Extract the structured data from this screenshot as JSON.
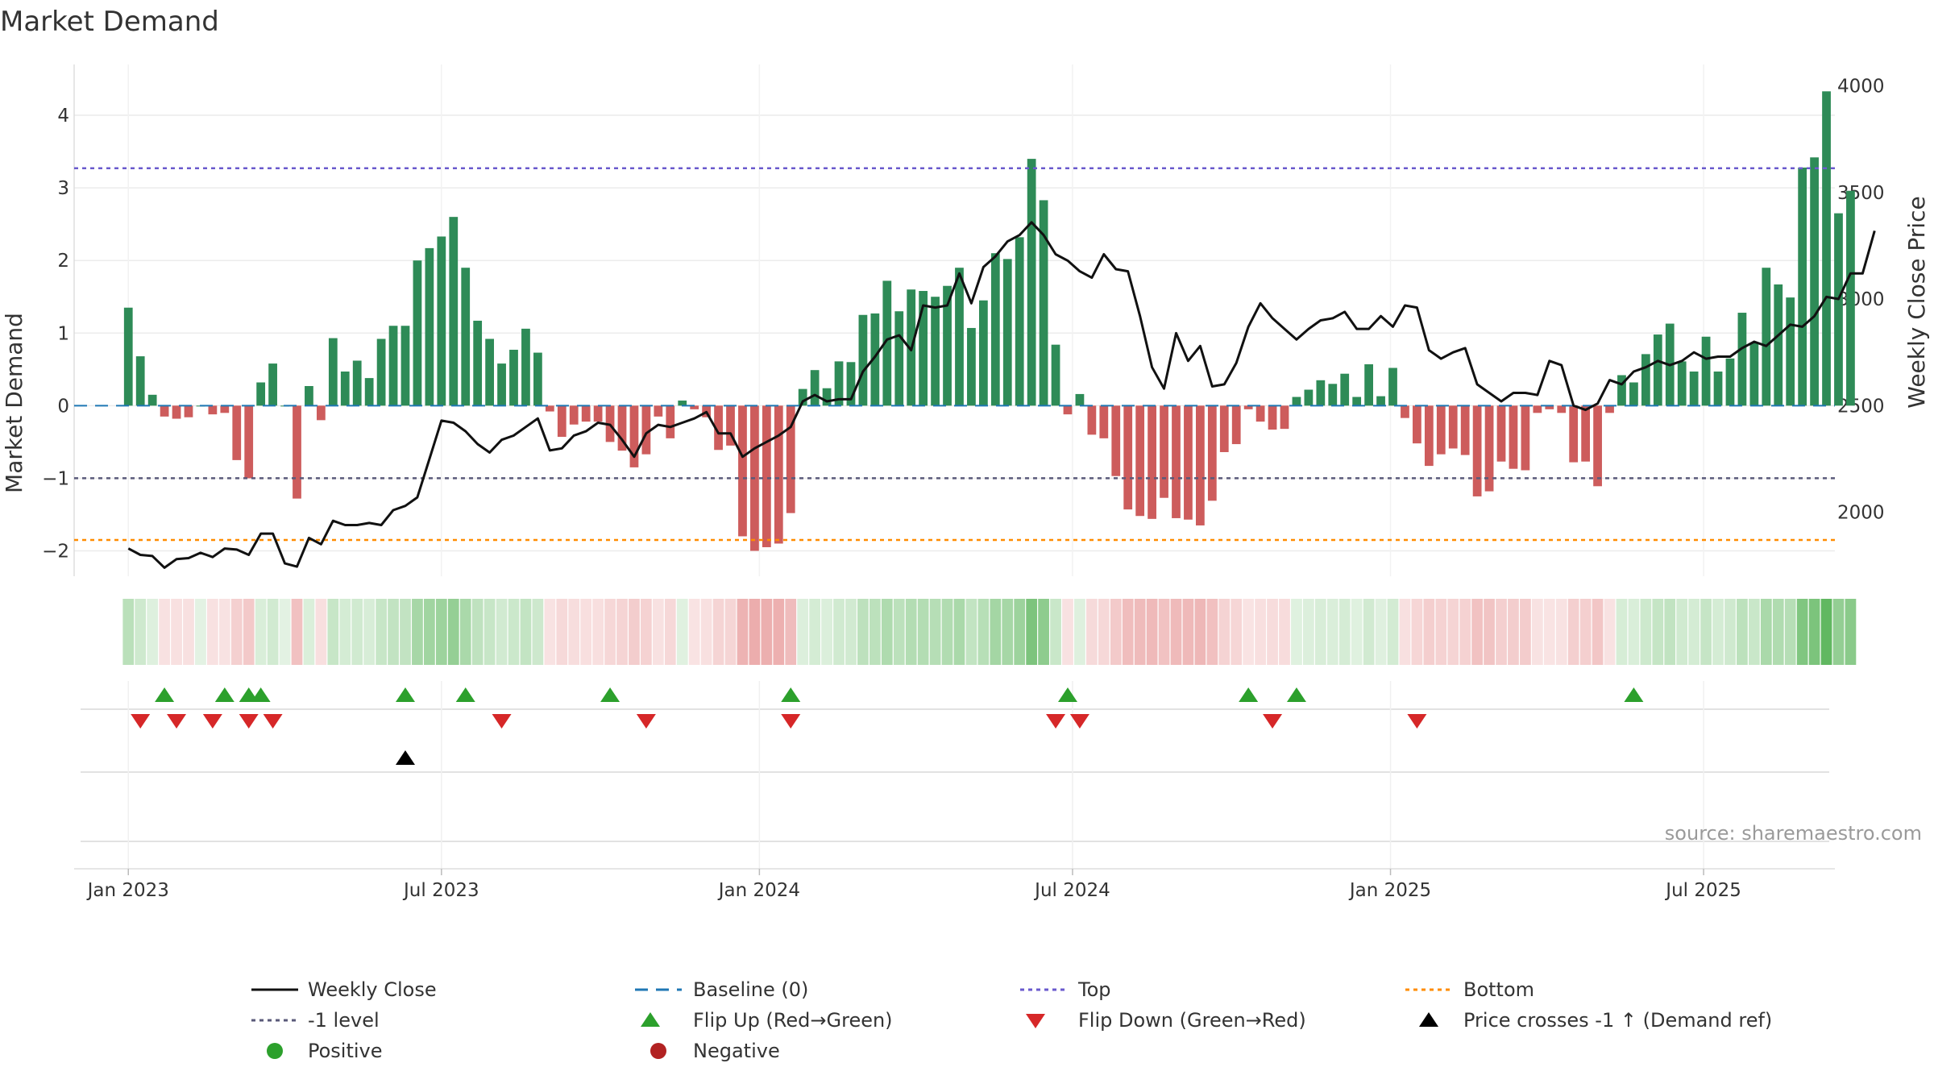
{
  "chart_data": {
    "type": "bar",
    "title": "Market Demand",
    "ylabel": "Market Demand",
    "y2label": "Weekly Close Price",
    "ylim": [
      -2.35,
      4.7
    ],
    "y2lim": [
      1700,
      4100
    ],
    "yticks": [
      4,
      3,
      2,
      1,
      0,
      -1,
      -2
    ],
    "ytick_labels": [
      "4",
      "3",
      "2",
      "1",
      "0",
      "−1",
      "−2"
    ],
    "y2ticks": [
      4000,
      3500,
      3000,
      2500,
      2000
    ],
    "y2tick_labels": [
      "4000",
      "3500",
      "3000",
      "2500",
      "2000"
    ],
    "x_range_weeks": [
      -4.5,
      141.7
    ],
    "xtick_labels": [
      "Jan 2023",
      "Jul 2023",
      "Jan 2024",
      "Jul 2024",
      "Jan 2025",
      "Jul 2025"
    ],
    "xtick_weeks": [
      0,
      26,
      52.4,
      78.4,
      104.8,
      130.8
    ],
    "levels": {
      "top": 3.27,
      "minus_one": -1,
      "bottom": -1.85,
      "baseline": 0
    },
    "demand": [
      1.35,
      0.68,
      0.15,
      -0.15,
      -0.18,
      -0.16,
      0,
      -0.12,
      -0.1,
      -0.75,
      -1,
      0.32,
      0.58,
      0,
      -1.28,
      0.27,
      -0.2,
      0.93,
      0.47,
      0.62,
      0.38,
      0.92,
      1.1,
      1.1,
      2.0,
      2.17,
      2.33,
      2.6,
      1.9,
      1.17,
      0.92,
      0.58,
      0.77,
      1.06,
      0.73,
      -0.08,
      -0.43,
      -0.26,
      -0.22,
      -0.22,
      -0.5,
      -0.62,
      -0.85,
      -0.67,
      -0.15,
      -0.45,
      0.07,
      -0.05,
      -0.16,
      -0.61,
      -0.55,
      -1.8,
      -2.0,
      -1.95,
      -1.9,
      -1.48,
      0.23,
      0.49,
      0.24,
      0.61,
      0.6,
      1.25,
      1.27,
      1.72,
      1.3,
      1.6,
      1.58,
      1.5,
      1.65,
      1.9,
      1.07,
      1.45,
      2.1,
      2.02,
      2.32,
      3.4,
      2.83,
      0.84,
      -0.12,
      0.16,
      -0.4,
      -0.45,
      -0.97,
      -1.43,
      -1.52,
      -1.56,
      -1.27,
      -1.55,
      -1.57,
      -1.65,
      -1.31,
      -0.64,
      -0.53,
      -0.05,
      -0.22,
      -0.33,
      -0.32,
      0.12,
      0.22,
      0.35,
      0.3,
      0.44,
      0.12,
      0.57,
      0.13,
      0.52,
      -0.17,
      -0.52,
      -0.83,
      -0.67,
      -0.59,
      -0.68,
      -1.25,
      -1.18,
      -0.77,
      -0.87,
      -0.89,
      -0.1,
      -0.05,
      -0.1,
      -0.78,
      -0.77,
      -1.11,
      -0.1,
      0.42,
      0.32,
      0.71,
      0.98,
      1.13,
      0.61,
      0.47,
      0.95,
      0.47,
      0.65,
      1.28,
      0.86,
      1.9,
      1.67,
      1.49,
      3.28,
      3.42,
      4.33,
      2.65,
      2.96
    ],
    "weekly_close": [
      1830,
      1800,
      1795,
      1740,
      1780,
      1785,
      1810,
      1790,
      1830,
      1825,
      1800,
      1900,
      1900,
      1760,
      1745,
      1880,
      1850,
      1960,
      1940,
      1940,
      1950,
      1940,
      2010,
      2030,
      2070,
      2250,
      2430,
      2420,
      2380,
      2320,
      2280,
      2340,
      2360,
      2400,
      2440,
      2290,
      2300,
      2360,
      2380,
      2420,
      2410,
      2340,
      2260,
      2370,
      2410,
      2400,
      2420,
      2440,
      2470,
      2370,
      2370,
      2260,
      2300,
      2330,
      2360,
      2400,
      2520,
      2550,
      2520,
      2530,
      2530,
      2660,
      2730,
      2810,
      2830,
      2760,
      2970,
      2960,
      2970,
      3120,
      2980,
      3150,
      3200,
      3270,
      3300,
      3360,
      3300,
      3210,
      3180,
      3130,
      3100,
      3210,
      3140,
      3130,
      2920,
      2680,
      2580,
      2840,
      2710,
      2780,
      2590,
      2600,
      2700,
      2870,
      2980,
      2910,
      2860,
      2810,
      2860,
      2900,
      2910,
      2940,
      2860,
      2860,
      2920,
      2870,
      2970,
      2960,
      2760,
      2720,
      2750,
      2770,
      2600,
      2560,
      2520,
      2560,
      2560,
      2550,
      2710,
      2690,
      2500,
      2480,
      2510,
      2620,
      2600,
      2660,
      2680,
      2710,
      2690,
      2710,
      2750,
      2720,
      2730,
      2730,
      2770,
      2800,
      2780,
      2830,
      2880,
      2870,
      2920,
      3010,
      3000,
      3120,
      3120,
      3320
    ]
  },
  "signals": {
    "flip_up": [
      3,
      8,
      10,
      11,
      23,
      28,
      40,
      55,
      78,
      93,
      97,
      125
    ],
    "flip_down": [
      1,
      4,
      7,
      10,
      12,
      31,
      43,
      55,
      77,
      79,
      95,
      107
    ],
    "price_cross": [
      23
    ]
  },
  "legend": {
    "weekly_close": "Weekly Close",
    "baseline": "Baseline (0)",
    "top": "Top",
    "bottom": "Bottom",
    "minus_one": "-1 level",
    "flip_up": "Flip Up (Red→Green)",
    "flip_down": "Flip Down (Green→Red)",
    "price_cross": "Price crosses -1 ↑ (Demand ref)",
    "positive": "Positive",
    "negative": "Negative"
  },
  "source": "source: sharemaestro.com",
  "colors": {
    "positive_bar": "#2e8b57",
    "negative_bar": "#cd5c5c",
    "price_line": "#111111",
    "baseline": "#1f77b4",
    "top_line": "#6a5acd",
    "minus_one_line": "#5a5a7a",
    "bottom_line": "#ff8c00",
    "flip_up": "#2ca02c",
    "flip_down": "#d62728",
    "positive_dot": "#2ca02c",
    "negative_dot": "#b22222"
  }
}
